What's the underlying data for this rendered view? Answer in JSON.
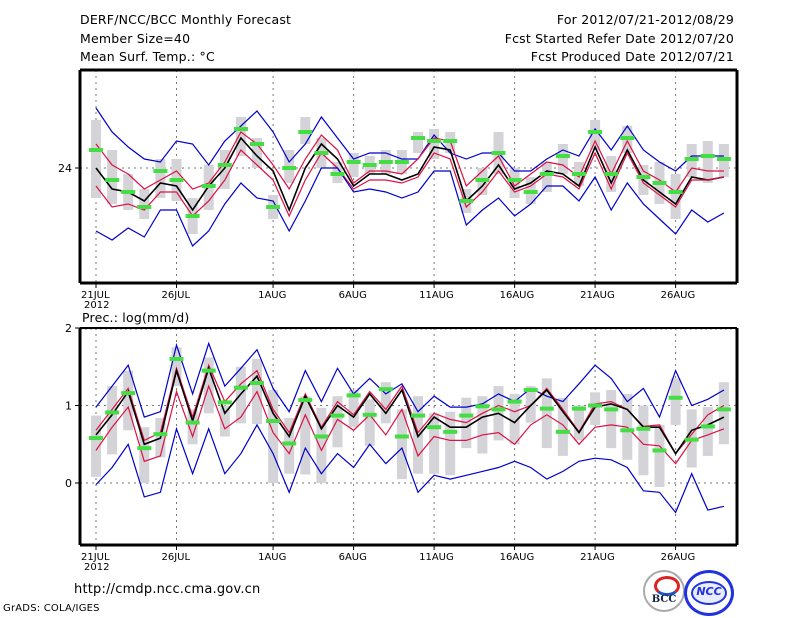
{
  "header": {
    "title": "DERF/NCC/BCC Monthly Forecast",
    "member_size": "Member Size=40",
    "variable_top": "Mean Surf. Temp.: °C",
    "period": "For 2012/07/21-2012/08/29",
    "started": "Fcst Started Refer Date 2012/07/20",
    "produced": "Fcst Produced Date 2012/07/21"
  },
  "footer": {
    "url": "http://cmdp.ncc.cma.gov.cn",
    "grads": "GrADS: COLA/IGES",
    "logo_bcc": "BCC",
    "logo_ncc": "NCC"
  },
  "colors": {
    "envelope": "#0000cc",
    "spread": "#dd1144",
    "mean": "#000000",
    "box": "#d3d3d8",
    "median": "#44dd44"
  },
  "chart_data": [
    {
      "type": "line",
      "title": "Mean Surf. Temp.: °C",
      "xticks": [
        "21JUL",
        "26JUL",
        "1AUG",
        "6AUG",
        "11AUG",
        "16AUG",
        "21AUG",
        "26AUG"
      ],
      "xtick_index": [
        0,
        5,
        11,
        16,
        21,
        26,
        31,
        36
      ],
      "year_label": "2012",
      "yticks": [
        24
      ],
      "ylim": [
        20.5,
        27.2
      ],
      "days": 40,
      "series": [
        {
          "name": "max",
          "values": [
            26.0,
            25.2,
            24.7,
            24.3,
            24.2,
            24.9,
            24.8,
            24.1,
            24.9,
            25.4,
            25.9,
            25.2,
            24.2,
            24.8,
            25.7,
            25.0,
            24.3,
            24.5,
            24.5,
            24.3,
            24.3,
            25.1,
            24.5,
            24.3,
            24.5,
            24.5,
            23.9,
            23.9,
            24.3,
            24.6,
            24.4,
            25.3,
            24.6,
            25.4,
            24.6,
            24.2,
            23.9,
            24.4,
            24.4,
            24.4
          ]
        },
        {
          "name": "p75",
          "values": [
            24.8,
            24.1,
            23.8,
            23.3,
            23.6,
            23.9,
            23.3,
            23.5,
            24.2,
            25.2,
            24.8,
            24.1,
            23.3,
            24.3,
            25.1,
            24.6,
            23.5,
            23.9,
            23.9,
            23.8,
            24.3,
            25.0,
            24.9,
            23.4,
            23.9,
            24.4,
            23.4,
            23.8,
            24.2,
            24.1,
            23.7,
            24.9,
            23.8,
            24.9,
            23.9,
            23.6,
            23.2,
            24.0,
            23.9,
            23.9
          ]
        },
        {
          "name": "mean",
          "values": [
            24.0,
            23.3,
            23.2,
            22.9,
            23.5,
            23.4,
            22.6,
            23.4,
            24.0,
            25.0,
            24.4,
            23.9,
            22.6,
            24.0,
            24.8,
            24.3,
            23.4,
            23.8,
            23.8,
            23.6,
            23.8,
            24.7,
            24.6,
            22.9,
            23.4,
            24.1,
            23.3,
            23.5,
            23.9,
            23.8,
            23.4,
            24.7,
            23.5,
            24.6,
            23.6,
            23.2,
            22.8,
            23.7,
            23.6,
            23.7
          ]
        },
        {
          "name": "p25",
          "values": [
            23.4,
            22.7,
            22.8,
            22.6,
            23.2,
            23.2,
            22.4,
            22.9,
            23.6,
            24.6,
            24.1,
            23.6,
            22.4,
            23.6,
            24.5,
            24.0,
            23.3,
            23.6,
            23.6,
            23.5,
            23.7,
            24.5,
            24.3,
            22.7,
            23.2,
            23.9,
            23.2,
            23.4,
            23.8,
            23.7,
            23.3,
            24.5,
            23.3,
            24.5,
            23.5,
            23.1,
            22.7,
            23.6,
            23.6,
            23.7
          ]
        },
        {
          "name": "min",
          "values": [
            21.9,
            21.6,
            22.0,
            21.7,
            22.6,
            22.6,
            21.4,
            21.9,
            22.8,
            23.5,
            23.0,
            22.9,
            21.9,
            22.9,
            24.0,
            24.0,
            23.2,
            23.3,
            23.2,
            23.0,
            23.2,
            23.9,
            23.9,
            22.1,
            22.6,
            23.0,
            22.4,
            22.8,
            23.4,
            23.4,
            22.9,
            23.7,
            22.6,
            23.5,
            22.8,
            22.3,
            21.8,
            22.6,
            22.2,
            22.5
          ]
        }
      ],
      "median": [
        24.6,
        23.6,
        23.2,
        22.7,
        23.9,
        23.6,
        22.4,
        23.4,
        24.1,
        25.3,
        24.8,
        22.7,
        24.0,
        25.2,
        24.5,
        23.8,
        24.2,
        24.1,
        24.2,
        24.2,
        25.0,
        24.9,
        24.9,
        22.9,
        23.6,
        24.5,
        23.6,
        23.2,
        23.8,
        24.4,
        23.8,
        25.2,
        23.8,
        25.0,
        23.7,
        23.5,
        23.2,
        24.3,
        24.4,
        24.3
      ],
      "box_low": [
        23.0,
        22.8,
        22.6,
        22.3,
        23.0,
        22.9,
        21.8,
        22.6,
        23.3,
        24.4,
        24.0,
        22.3,
        23.5,
        24.8,
        24.0,
        23.5,
        23.7,
        23.8,
        23.8,
        23.8,
        24.5,
        24.3,
        24.5,
        22.5,
        23.1,
        23.8,
        23.0,
        22.8,
        23.2,
        23.8,
        23.4,
        24.6,
        23.2,
        24.5,
        23.1,
        22.8,
        22.3,
        23.7,
        23.5,
        23.7
      ],
      "box_high": [
        25.6,
        24.6,
        23.8,
        23.3,
        24.3,
        24.3,
        23.0,
        24.1,
        24.6,
        25.7,
        25.0,
        23.1,
        24.6,
        25.7,
        25.0,
        24.2,
        24.5,
        24.4,
        24.6,
        24.6,
        25.2,
        25.3,
        25.2,
        23.3,
        24.0,
        25.2,
        24.0,
        23.7,
        24.2,
        24.8,
        24.2,
        25.6,
        24.4,
        25.4,
        24.1,
        24.2,
        23.8,
        24.8,
        24.9,
        24.8
      ]
    },
    {
      "type": "line",
      "title": "Prec.: log(mm/d)",
      "xticks": [
        "21JUL",
        "26JUL",
        "1AUG",
        "6AUG",
        "11AUG",
        "16AUG",
        "21AUG",
        "26AUG"
      ],
      "xtick_index": [
        0,
        5,
        11,
        16,
        21,
        26,
        31,
        36
      ],
      "year_label": "2012",
      "yticks": [
        0,
        1,
        2
      ],
      "ylim": [
        -0.8,
        2
      ],
      "days": 40,
      "series": [
        {
          "name": "max",
          "values": [
            0.98,
            1.25,
            1.52,
            0.85,
            0.92,
            1.78,
            1.15,
            1.8,
            1.25,
            1.48,
            1.72,
            1.22,
            0.92,
            1.45,
            1.05,
            1.48,
            1.15,
            1.35,
            1.15,
            1.28,
            0.92,
            1.12,
            0.98,
            0.98,
            1.02,
            1.15,
            1.05,
            1.22,
            1.12,
            1.05,
            1.28,
            1.52,
            1.35,
            1.05,
            1.22,
            0.85,
            1.45,
            1.0,
            1.08,
            1.2
          ]
        },
        {
          "name": "p75",
          "values": [
            0.68,
            0.95,
            1.22,
            0.55,
            0.65,
            1.48,
            0.85,
            1.52,
            1.05,
            1.28,
            1.45,
            0.95,
            0.65,
            1.15,
            0.72,
            1.05,
            0.88,
            1.18,
            0.95,
            1.25,
            0.65,
            0.9,
            0.82,
            0.78,
            0.9,
            1.0,
            0.92,
            1.0,
            1.22,
            0.95,
            0.66,
            1.02,
            1.05,
            0.95,
            0.73,
            0.75,
            0.38,
            0.63,
            0.88,
            1.0
          ]
        },
        {
          "name": "mean",
          "values": [
            0.62,
            0.88,
            1.18,
            0.5,
            0.58,
            1.45,
            0.8,
            1.48,
            0.9,
            1.15,
            1.38,
            0.9,
            0.6,
            1.12,
            0.7,
            1.0,
            0.85,
            1.15,
            0.9,
            1.2,
            0.6,
            0.85,
            0.72,
            0.72,
            0.85,
            0.9,
            0.78,
            1.0,
            1.2,
            0.92,
            0.65,
            0.98,
            1.02,
            0.95,
            0.72,
            0.72,
            0.38,
            0.68,
            0.75,
            0.85
          ]
        },
        {
          "name": "p25",
          "values": [
            0.42,
            0.72,
            0.98,
            0.28,
            0.35,
            1.18,
            0.6,
            1.25,
            0.7,
            0.85,
            1.18,
            0.65,
            0.38,
            0.88,
            0.42,
            0.82,
            0.68,
            0.88,
            0.62,
            0.95,
            0.35,
            0.6,
            0.55,
            0.55,
            0.62,
            0.65,
            0.5,
            0.75,
            0.88,
            0.75,
            0.5,
            0.72,
            0.75,
            0.72,
            0.5,
            0.48,
            0.25,
            0.55,
            0.62,
            0.7
          ]
        },
        {
          "name": "min",
          "values": [
            -0.02,
            0.2,
            0.5,
            -0.18,
            -0.12,
            0.7,
            0.12,
            0.7,
            0.12,
            0.38,
            0.75,
            0.38,
            -0.12,
            0.45,
            0.12,
            0.38,
            0.2,
            0.5,
            0.25,
            0.45,
            -0.12,
            0.15,
            0.08,
            0.12,
            0.2,
            0.28,
            0.22,
            0.35,
            0.45,
            0.15,
            -0.12,
            0.2,
            0.2,
            0.12,
            -0.05,
            -0.2,
            -0.45,
            -0.05,
            -0.05,
            -0.1
          ]
        },
        {
          "name": "min_tail",
          "values": [
            -0.02,
            0.2,
            0.5,
            -0.18,
            -0.12,
            0.7,
            0.12,
            0.7,
            0.12,
            0.38,
            0.75,
            0.38,
            -0.12,
            0.45,
            0.12,
            0.38,
            0.2,
            0.5,
            0.25,
            0.45,
            -0.12,
            0.1,
            0.05,
            0.1,
            0.15,
            0.2,
            0.28,
            0.2,
            0.05,
            0.15,
            0.28,
            0.32,
            0.3,
            0.2,
            -0.1,
            -0.12,
            -0.38,
            0.12,
            -0.35,
            -0.3
          ]
        }
      ],
      "median": [
        0.58,
        0.91,
        1.16,
        0.45,
        0.63,
        1.6,
        0.78,
        1.45,
        1.04,
        1.23,
        1.29,
        0.8,
        0.51,
        1.07,
        0.6,
        0.87,
        1.13,
        0.88,
        1.21,
        0.6,
        0.87,
        0.72,
        0.66,
        0.87,
        0.99,
        0.95,
        1.05,
        1.2,
        0.96,
        0.66,
        0.96,
        1.0,
        0.95,
        0.68,
        0.7,
        0.42,
        1.1,
        0.56,
        0.73,
        0.95
      ],
      "box_low": [
        0.08,
        0.37,
        0.68,
        0.0,
        0.33,
        1.25,
        0.5,
        0.9,
        0.6,
        0.77,
        0.76,
        0.0,
        0.12,
        0.11,
        0.0,
        0.46,
        0.72,
        0.48,
        0.77,
        0.05,
        0.12,
        0.12,
        0.1,
        0.45,
        0.38,
        0.55,
        0.5,
        0.78,
        0.45,
        0.35,
        0.55,
        0.75,
        0.45,
        0.3,
        0.1,
        -0.05,
        0.75,
        0.2,
        0.35,
        0.5
      ],
      "box_high": [
        0.87,
        1.25,
        1.45,
        0.72,
        0.84,
        1.75,
        0.95,
        1.62,
        1.0,
        1.5,
        1.6,
        1.2,
        0.84,
        1.12,
        0.97,
        1.12,
        1.2,
        1.08,
        1.3,
        0.95,
        1.12,
        0.9,
        0.92,
        1.1,
        1.12,
        1.25,
        1.15,
        1.25,
        1.35,
        1.1,
        1.0,
        1.17,
        1.2,
        1.15,
        1.0,
        0.75,
        1.35,
        0.95,
        0.98,
        1.3
      ]
    }
  ]
}
